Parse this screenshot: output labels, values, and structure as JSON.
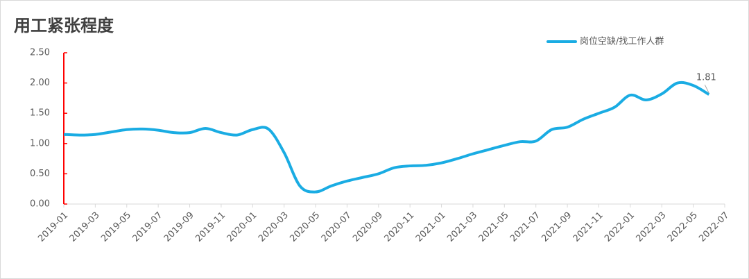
{
  "chart_data": {
    "type": "line",
    "title": "用工紧张程度",
    "categories": [
      "2019-01",
      null,
      "2019-03",
      null,
      "2019-05",
      null,
      "2019-07",
      null,
      "2019-09",
      null,
      "2019-11",
      null,
      "2020-01",
      null,
      "2020-03",
      null,
      "2020-05",
      null,
      "2020-07",
      null,
      "2020-09",
      null,
      "2020-11",
      null,
      "2021-01",
      null,
      "2021-03",
      null,
      "2021-05",
      null,
      "2021-07",
      null,
      "2021-09",
      null,
      "2021-11",
      null,
      "2022-01",
      null,
      "2022-03",
      null,
      "2022-05",
      null,
      "2022-07"
    ],
    "series": [
      {
        "name": "岗位空缺/找工作人群",
        "color": "#1aace3",
        "values": [
          1.15,
          1.14,
          1.15,
          1.19,
          1.23,
          1.24,
          1.22,
          1.18,
          1.18,
          1.25,
          1.18,
          1.14,
          1.23,
          1.24,
          0.85,
          0.3,
          0.2,
          0.3,
          0.38,
          0.44,
          0.5,
          0.6,
          0.63,
          0.64,
          0.68,
          0.75,
          0.83,
          0.9,
          0.97,
          1.03,
          1.04,
          1.23,
          1.27,
          1.4,
          1.5,
          1.6,
          1.8,
          1.72,
          1.82,
          2.0,
          1.96,
          1.81,
          null
        ]
      }
    ],
    "ylim": [
      0,
      2.5
    ],
    "yticks": [
      {
        "value": 0,
        "label": "0.00"
      },
      {
        "value": 0.5,
        "label": "0.50"
      },
      {
        "value": 1,
        "label": "1.00"
      },
      {
        "value": 1.5,
        "label": "1.50"
      },
      {
        "value": 2,
        "label": "2.00"
      },
      {
        "value": 2.5,
        "label": "2.50"
      }
    ],
    "axis_color": "#ff0000",
    "legend": "top-right"
  }
}
